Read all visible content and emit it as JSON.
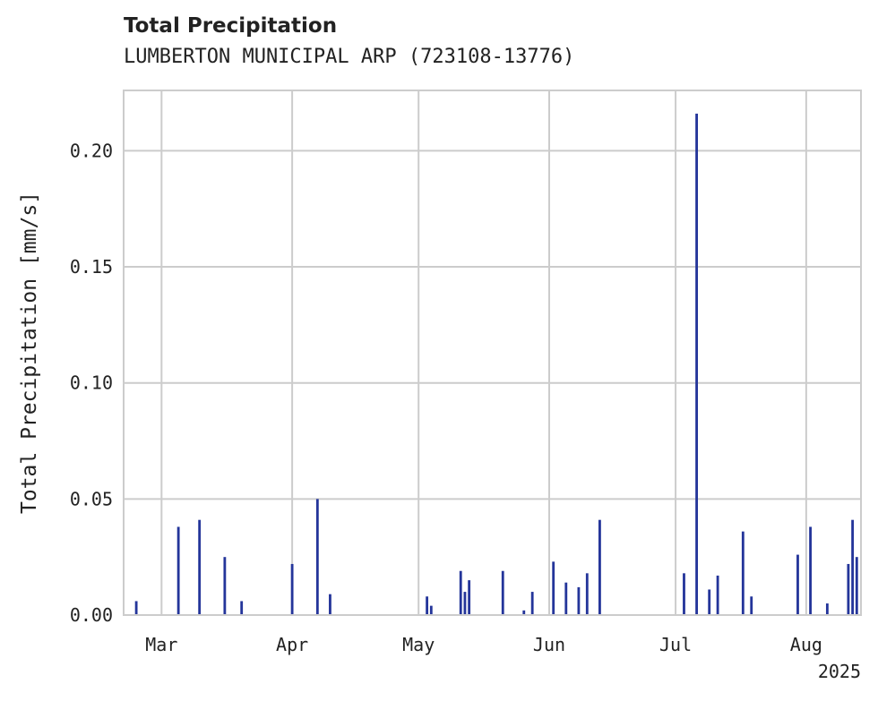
{
  "title": "Total Precipitation",
  "subtitle": "LUMBERTON MUNICIPAL ARP (723108-13776)",
  "colors": {
    "series": "#24359a",
    "grid": "#cccccc",
    "spine": "#cccccc",
    "text": "#222222"
  },
  "chart_data": {
    "type": "bar",
    "title": "Total Precipitation",
    "subtitle": "LUMBERTON MUNICIPAL ARP (723108-13776)",
    "xlabel": "",
    "ylabel": "Total Precipitation [mm/s]",
    "x_range": [
      "2025-02-20",
      "2025-08-14"
    ],
    "ylim": [
      0,
      0.226
    ],
    "grid": true,
    "x_ticks": [
      {
        "date": "2025-03-01",
        "label": "Mar"
      },
      {
        "date": "2025-04-01",
        "label": "Apr"
      },
      {
        "date": "2025-05-01",
        "label": "May"
      },
      {
        "date": "2025-06-01",
        "label": "Jun"
      },
      {
        "date": "2025-07-01",
        "label": "Jul"
      },
      {
        "date": "2025-08-01",
        "label": "Aug"
      }
    ],
    "x_offset_label": "2025",
    "y_ticks": [
      {
        "value": 0.0,
        "label": "0.00"
      },
      {
        "value": 0.05,
        "label": "0.05"
      },
      {
        "value": 0.1,
        "label": "0.10"
      },
      {
        "value": 0.15,
        "label": "0.15"
      },
      {
        "value": 0.2,
        "label": "0.20"
      }
    ],
    "series": [
      {
        "x": [
          "2025-02-23",
          "2025-03-05",
          "2025-03-10",
          "2025-03-16",
          "2025-03-20",
          "2025-04-01",
          "2025-04-07",
          "2025-04-10",
          "2025-05-03",
          "2025-05-04",
          "2025-05-11",
          "2025-05-12",
          "2025-05-13",
          "2025-05-21",
          "2025-05-26",
          "2025-05-28",
          "2025-06-02",
          "2025-06-05",
          "2025-06-08",
          "2025-06-10",
          "2025-06-13",
          "2025-07-03",
          "2025-07-06",
          "2025-07-09",
          "2025-07-11",
          "2025-07-17",
          "2025-07-19",
          "2025-07-30",
          "2025-08-02",
          "2025-08-06",
          "2025-08-11",
          "2025-08-12",
          "2025-08-13"
        ],
        "values": [
          0.006,
          0.038,
          0.041,
          0.025,
          0.006,
          0.022,
          0.05,
          0.009,
          0.008,
          0.004,
          0.019,
          0.01,
          0.015,
          0.019,
          0.002,
          0.01,
          0.023,
          0.014,
          0.012,
          0.018,
          0.041,
          0.018,
          0.216,
          0.011,
          0.017,
          0.036,
          0.008,
          0.026,
          0.038,
          0.005,
          0.022,
          0.041,
          0.025
        ]
      }
    ]
  }
}
